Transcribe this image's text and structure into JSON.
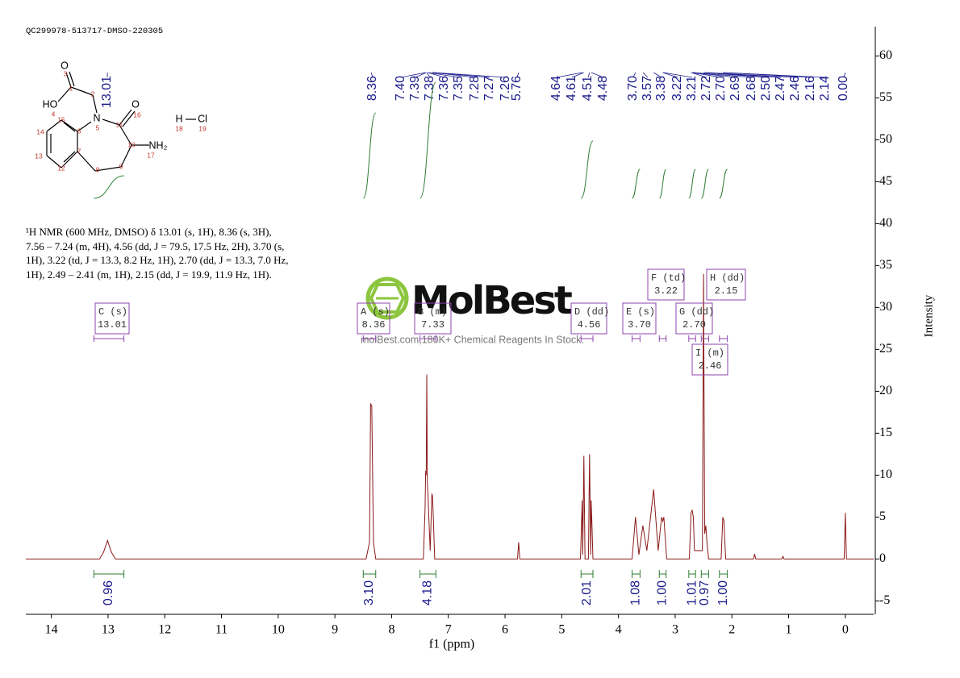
{
  "header": "QC299978-513717-DMSO-220305",
  "watermark": {
    "brand": "MolBest",
    "tagline": "molBest.com,180K+ Chemical Reagents In Stock."
  },
  "description": "¹H NMR (600 MHz, DMSO) δ 13.01 (s, 1H), 8.36 (s, 3H), 7.56 – 7.24 (m, 4H), 4.56 (dd, J = 79.5, 17.5 Hz, 2H), 3.70 (s, 1H), 3.22 (td, J = 13.3, 8.2 Hz, 1H), 2.70 (dd, J = 13.3, 7.0 Hz, 1H), 2.49 – 2.41 (m, 1H), 2.15 (dd, J = 19.9, 11.9 Hz, 1H).",
  "molecule": {
    "atoms": [
      "O",
      "HO",
      "N",
      "O",
      "NH₂",
      "H",
      "Cl"
    ],
    "numbers": [
      "3",
      "4",
      "5",
      "16",
      "17",
      "18",
      "19",
      "1",
      "2",
      "11",
      "10",
      "9",
      "8",
      "7",
      "6",
      "15",
      "14",
      "13",
      "12"
    ]
  },
  "chart_data": {
    "type": "line",
    "xlabel": "f1 (ppm)",
    "ylabel": "Intensity",
    "color": "#8b1a1a",
    "grid": false,
    "xlim": [
      14.45,
      -0.5
    ],
    "ylim": [
      -6.6,
      63.5
    ],
    "xticks": [
      14,
      13,
      12,
      11,
      10,
      9,
      8,
      7,
      6,
      5,
      4,
      3,
      2,
      1,
      0
    ],
    "yticks": [
      -5,
      0,
      5,
      10,
      15,
      20,
      25,
      30,
      35,
      40,
      45,
      50,
      55,
      60
    ],
    "x": [
      14.45,
      13.15,
      13.08,
      13.01,
      12.94,
      12.87,
      8.45,
      8.39,
      8.37,
      8.35,
      8.32,
      8.28,
      7.44,
      7.41,
      7.4,
      7.39,
      7.38,
      7.37,
      7.36,
      7.35,
      7.32,
      7.29,
      7.28,
      7.27,
      7.24,
      5.78,
      5.76,
      5.74,
      4.67,
      4.64,
      4.63,
      4.61,
      4.59,
      4.53,
      4.51,
      4.49,
      4.48,
      4.45,
      3.76,
      3.7,
      3.64,
      3.57,
      3.5,
      3.38,
      3.3,
      3.24,
      3.22,
      3.2,
      3.15,
      2.75,
      2.72,
      2.7,
      2.68,
      2.66,
      2.52,
      2.5,
      2.48,
      2.46,
      2.44,
      2.41,
      2.19,
      2.16,
      2.14,
      2.11,
      1.62,
      1.6,
      1.58,
      1.12,
      1.1,
      1.08,
      0.02,
      0,
      -0.02,
      -0.5
    ],
    "values": [
      0,
      0,
      0.8,
      2.2,
      0.8,
      0,
      0,
      2,
      18.5,
      18.3,
      2,
      0,
      0,
      6,
      10.5,
      10,
      22,
      9,
      8,
      6,
      1,
      7.8,
      7.5,
      6,
      0,
      0,
      2,
      0,
      0,
      7,
      0.5,
      12.3,
      0,
      0,
      12.5,
      0.5,
      7,
      0,
      0,
      5,
      0.5,
      4,
      1,
      8.3,
      1,
      5,
      4.5,
      5,
      0,
      0,
      5.5,
      5.8,
      5,
      1,
      1,
      34,
      3,
      4,
      2,
      0,
      0,
      5,
      4.5,
      0,
      0,
      0.6,
      0,
      0,
      0.3,
      0,
      0,
      5.5,
      0,
      0
    ],
    "peak_labels": [
      13.01,
      8.36,
      {
        "value": 7.4,
        "label": "7.40"
      },
      7.39,
      7.38,
      7.36,
      7.35,
      7.28,
      7.27,
      7.26,
      5.76,
      4.64,
      4.61,
      4.51,
      4.48,
      {
        "value": 3.7,
        "label": "3.70"
      },
      3.57,
      3.38,
      3.22,
      3.21,
      2.72,
      {
        "value": 2.7,
        "label": "2.70"
      },
      2.69,
      2.68,
      {
        "value": 2.5,
        "label": "2.50"
      },
      2.47,
      2.46,
      2.16,
      2.14,
      {
        "value": 0,
        "label": "0.00"
      }
    ],
    "integrals": {
      "ranges": [
        [
          13.25,
          12.72
        ],
        [
          8.5,
          8.28
        ],
        [
          7.5,
          7.22
        ],
        [
          4.66,
          4.45
        ],
        [
          3.76,
          3.62
        ],
        [
          3.28,
          3.16
        ],
        [
          2.76,
          2.64
        ],
        [
          2.54,
          2.41
        ],
        [
          2.22,
          2.08
        ]
      ],
      "values": [
        0.96,
        3.1,
        4.18,
        2.01,
        1.08,
        1,
        1.01,
        0.97,
        1
      ],
      "value_labels": [
        "0.96",
        "3.10",
        "4.18",
        "2.01",
        "1.08",
        "1.00",
        "1.01",
        "0.97",
        "1.00"
      ]
    },
    "multiplets": {
      "names": [
        "C (s)",
        "A (s)",
        "B (m)",
        "D (dd)",
        "E (s)",
        "F (td)",
        "G (dd)",
        "H (dd)",
        "I (m)"
      ],
      "values": [
        13.01,
        8.36,
        7.33,
        4.56,
        3.7,
        3.22,
        2.7,
        2.15,
        2.46
      ],
      "value_labels": [
        "13.01",
        "8.36",
        "7.33",
        "4.56",
        "3.70",
        "3.22",
        "2.70",
        "2.15",
        "2.46"
      ],
      "ranges": [
        [
          13.25,
          12.72
        ],
        [
          8.5,
          8.28
        ],
        [
          7.5,
          7.22
        ],
        [
          4.66,
          4.45
        ],
        [
          3.76,
          3.62
        ],
        [
          3.28,
          3.16
        ],
        [
          2.76,
          2.64
        ],
        [
          2.22,
          2.08
        ],
        [
          2.54,
          2.41
        ]
      ]
    }
  }
}
